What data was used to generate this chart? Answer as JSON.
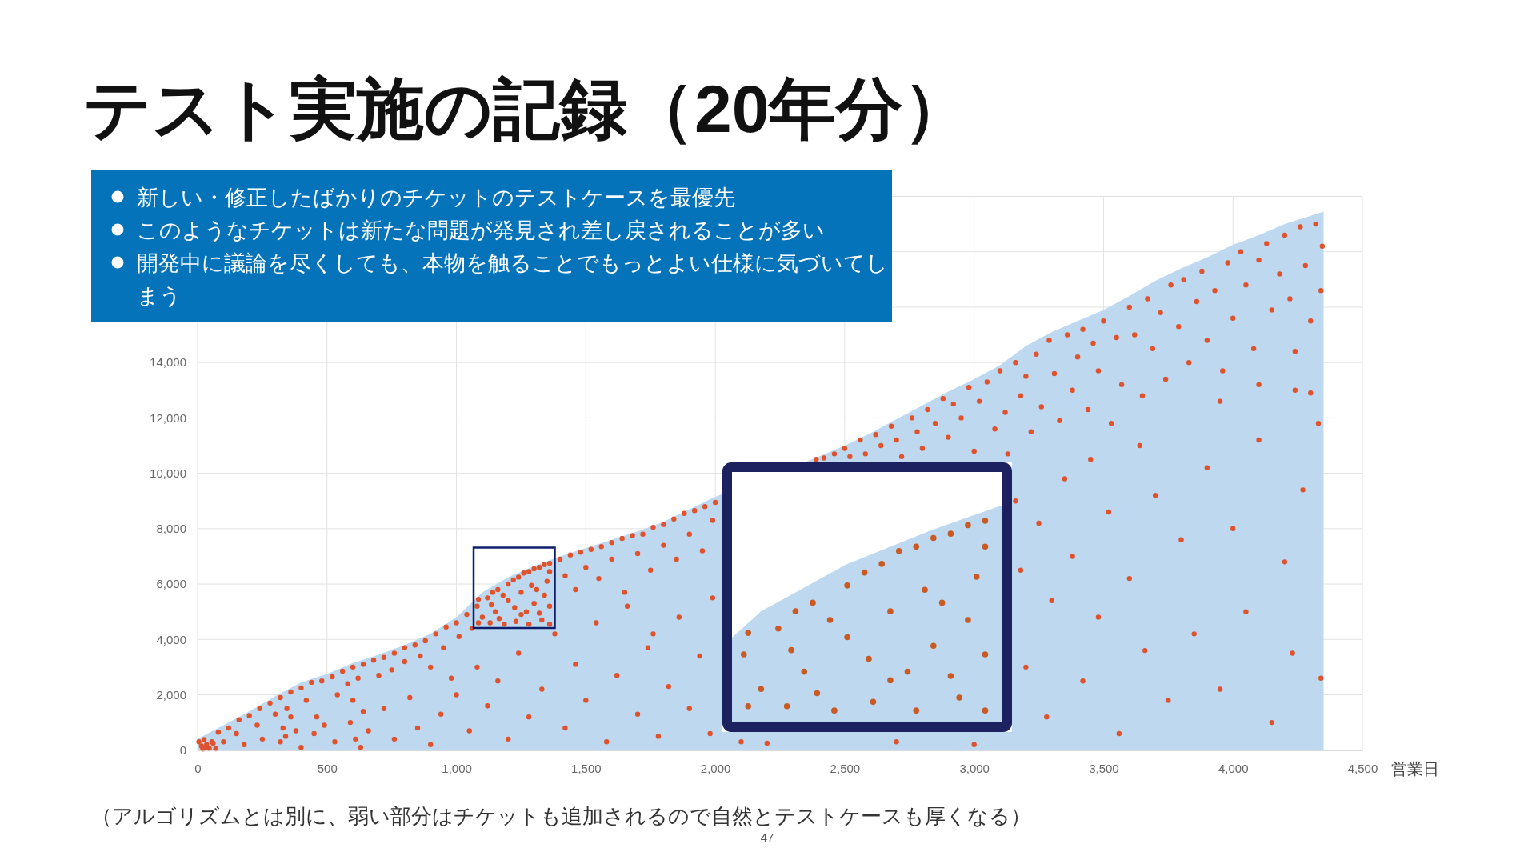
{
  "chart_data": {
    "type": "scatter",
    "title": "テスト実施の記録（20年分）",
    "xlabel": "営業日",
    "annotations": [
      "新しい・修正したばかりのチケットのテストケースを最優先",
      "このようなチケットは新たな問題が発見され差し戻されることが多い",
      "開発中に議論を尽くしても、本物を触ることでもっとよい仕様に気づいてしまう",
      "（アルゴリズムとは別に、弱い部分はチケットも追加されるので自然とテストケースも厚くなる）",
      "47"
    ],
    "xlim": [
      0,
      4500
    ],
    "ylim": [
      0,
      20000
    ],
    "xticks": [
      0,
      500,
      {
        "value": 1000,
        "label": "1,000"
      },
      {
        "value": 1500,
        "label": "1,500"
      },
      {
        "value": 2000,
        "label": "2,000"
      },
      {
        "value": 2500,
        "label": "2,500"
      },
      {
        "value": 3000,
        "label": "3,000"
      },
      {
        "value": 3500,
        "label": "3,500"
      },
      {
        "value": 4000,
        "label": "4,000"
      },
      {
        "value": 4500,
        "label": "4,500"
      }
    ],
    "yticks": [
      0,
      {
        "value": 2000,
        "label": "2,000"
      },
      {
        "value": 4000,
        "label": "4,000"
      },
      {
        "value": 6000,
        "label": "6,000"
      },
      {
        "value": 8000,
        "label": "8,000"
      },
      {
        "value": 10000,
        "label": "10,000"
      },
      {
        "value": 12000,
        "label": "12,000"
      },
      {
        "value": 14000,
        "label": "14,000"
      },
      {
        "value": 16000,
        "label": null
      },
      {
        "value": 18000,
        "label": null
      },
      {
        "value": 20000,
        "label": null
      }
    ],
    "grid": true,
    "series": [
      {
        "type": "area",
        "color": "#bdd8ef",
        "x": [
          0,
          100,
          200,
          300,
          400,
          500,
          600,
          700,
          800,
          900,
          1000,
          1100,
          1200,
          1300,
          1400,
          1500,
          1600,
          1700,
          1800,
          1900,
          2000,
          2400,
          2500,
          2600,
          2700,
          2800,
          2900,
          3000,
          3100,
          3200,
          3300,
          3400,
          3500,
          3600,
          3700,
          3800,
          3900,
          4000,
          4100,
          4200,
          4300,
          4350
        ],
        "values": [
          400,
          900,
          1400,
          1950,
          2450,
          2750,
          3150,
          3450,
          3800,
          4200,
          4800,
          5700,
          6250,
          6650,
          7000,
          7300,
          7600,
          7900,
          8250,
          8700,
          9150,
          10600,
          11000,
          11450,
          11950,
          12450,
          12950,
          13400,
          13900,
          14600,
          15100,
          15500,
          15900,
          16400,
          16950,
          17400,
          17800,
          18250,
          18600,
          19000,
          19300,
          19450
        ]
      },
      {
        "color": "#e0522c",
        "x": [
          5,
          15,
          25,
          35,
          45,
          55,
          20,
          30,
          60,
          70,
          80,
          120,
          160,
          200,
          240,
          280,
          320,
          360,
          400,
          440,
          480,
          520,
          560,
          600,
          640,
          680,
          720,
          760,
          800,
          840,
          880,
          920,
          960,
          1000,
          1040,
          1080,
          1120,
          1160,
          1200,
          1240,
          1280,
          1320,
          1360,
          1400,
          1440,
          1480,
          1520,
          1560,
          1600,
          1640,
          1680,
          1720,
          1760,
          1800,
          1840,
          1880,
          1920,
          1960,
          2000,
          100,
          150,
          230,
          300,
          330,
          345,
          360,
          380,
          420,
          460,
          540,
          580,
          600,
          620,
          640,
          700,
          750,
          800,
          860,
          900,
          950,
          980,
          1010,
          1060,
          1100,
          1150,
          1200,
          1250,
          1300,
          1350,
          1420,
          1460,
          1500,
          1550,
          1600,
          1650,
          1700,
          1750,
          1800,
          1850,
          1900,
          1950,
          1990,
          180,
          250,
          320,
          340,
          400,
          450,
          490,
          530,
          590,
          610,
          630,
          660,
          720,
          760,
          820,
          850,
          900,
          940,
          1000,
          1050,
          1080,
          1120,
          1160,
          1200,
          1240,
          1280,
          1330,
          1380,
          1420,
          1460,
          1500,
          1540,
          1580,
          1620,
          1660,
          1700,
          1740,
          1760,
          1780,
          1820,
          1860,
          1900,
          1940,
          1980,
          1990,
          1085,
          1130,
          1185,
          1230,
          1280,
          1330,
          1360,
          1085,
          1135,
          1180,
          1225,
          1270,
          1320,
          1360,
          1340,
          1290,
          1360,
          1220,
          1260,
          1300,
          1340,
          1140,
          1165,
          1250,
          1310,
          2100,
          2200,
          2700,
          3000,
          2390,
          2420,
          2460,
          2500,
          2520,
          2560,
          2580,
          2620,
          2640,
          2680,
          2700,
          2720,
          2760,
          2780,
          2800,
          2820,
          2850,
          2880,
          2900,
          2920,
          2950,
          2980,
          3000,
          3020,
          3050,
          3080,
          3100,
          3120,
          3130,
          3160,
          3180,
          3200,
          3220,
          3240,
          3260,
          3290,
          3310,
          3330,
          3360,
          3380,
          3400,
          3420,
          3440,
          3460,
          3480,
          3500,
          3530,
          3550,
          3570,
          3600,
          3620,
          3650,
          3670,
          3690,
          3720,
          3740,
          3760,
          3790,
          3810,
          3830,
          3860,
          3880,
          3900,
          3930,
          3960,
          3980,
          4000,
          4030,
          4050,
          4080,
          4100,
          4130,
          4150,
          4180,
          4200,
          4220,
          4240,
          4260,
          4280,
          4300,
          4320,
          4340,
          4345,
          4240,
          4100,
          3950,
          4300,
          3160,
          3180,
          3200,
          3250,
          3280,
          3300,
          3350,
          3380,
          3420,
          3450,
          3480,
          3520,
          3560,
          3600,
          3640,
          3660,
          3700,
          3750,
          3800,
          3850,
          3900,
          3950,
          4000,
          4050,
          4100,
          4150,
          4200,
          4230,
          4270,
          4330,
          4340
        ],
        "values": [
          300,
          150,
          380,
          200,
          60,
          300,
          40,
          100,
          250,
          50,
          650,
          800,
          1100,
          1250,
          1500,
          1700,
          1900,
          2100,
          2250,
          2450,
          2500,
          2650,
          2850,
          3000,
          3100,
          3250,
          3350,
          3500,
          3700,
          3800,
          3950,
          4200,
          4450,
          4600,
          4900,
          5200,
          5500,
          5800,
          6000,
          6250,
          6450,
          6600,
          6750,
          6900,
          7050,
          7150,
          7250,
          7350,
          7500,
          7650,
          7750,
          7800,
          8050,
          8150,
          8350,
          8550,
          8650,
          8800,
          8950,
          300,
          600,
          900,
          1300,
          800,
          1500,
          1200,
          700,
          1800,
          1200,
          2000,
          2400,
          1800,
          2600,
          1400,
          2700,
          2900,
          3200,
          3400,
          3000,
          3700,
          2600,
          4100,
          4400,
          4800,
          5000,
          5400,
          5700,
          5300,
          6100,
          6300,
          5800,
          6600,
          6200,
          6900,
          5700,
          7100,
          6500,
          7400,
          6900,
          7800,
          7200,
          8300,
          200,
          400,
          300,
          500,
          100,
          600,
          900,
          300,
          1000,
          400,
          100,
          700,
          1500,
          400,
          1900,
          800,
          200,
          1300,
          2000,
          700,
          3000,
          1600,
          2500,
          400,
          3500,
          1200,
          2200,
          4200,
          800,
          3100,
          1800,
          4600,
          300,
          2700,
          5200,
          1300,
          3700,
          4200,
          500,
          2300,
          4800,
          1500,
          3400,
          600,
          5500,
          4600,
          4600,
          4550,
          4650,
          4550,
          4700,
          4550,
          5450,
          5250,
          5600,
          5150,
          5000,
          4950,
          5200,
          5600,
          5950,
          6450,
          6150,
          6400,
          6550,
          6700,
          5700,
          4750,
          4900,
          5800,
          300,
          250,
          300,
          200,
          10500,
          10550,
          10700,
          10900,
          10600,
          11200,
          10700,
          11400,
          11000,
          11700,
          11200,
          10600,
          12000,
          11500,
          10900,
          12300,
          11800,
          12700,
          11300,
          12500,
          12000,
          13100,
          10800,
          12600,
          13300,
          11600,
          13700,
          12200,
          10700,
          14000,
          12800,
          13500,
          11500,
          14300,
          12400,
          14800,
          13600,
          11900,
          15000,
          13000,
          14200,
          15200,
          12300,
          14700,
          13700,
          15500,
          11800,
          14900,
          13200,
          16000,
          15000,
          12800,
          16300,
          14500,
          15800,
          13400,
          16800,
          15300,
          17000,
          14000,
          16200,
          17300,
          14800,
          16600,
          13700,
          17600,
          15600,
          18000,
          16800,
          14500,
          17700,
          18300,
          15900,
          17200,
          18600,
          16300,
          14400,
          18900,
          17500,
          15500,
          19000,
          16600,
          18200,
          13000,
          13200,
          12600,
          12900,
          9000,
          6500,
          3000,
          8200,
          1200,
          5400,
          9800,
          7000,
          2500,
          10500,
          4800,
          8600,
          600,
          6200,
          11000,
          3600,
          9200,
          1800,
          7600,
          4200,
          10200,
          2200,
          8000,
          5000,
          11200,
          1000,
          6800,
          3500,
          9400,
          11800,
          2600
        ]
      }
    ]
  }
}
